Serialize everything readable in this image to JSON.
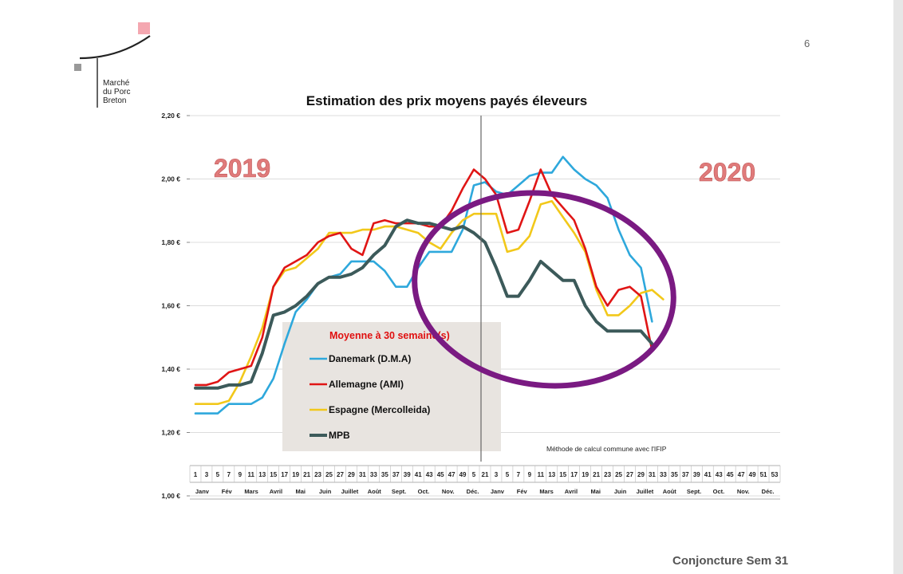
{
  "page": {
    "number": "6",
    "footer": "Conjoncture Sem 31",
    "logo_lines": [
      "Marché",
      "du Porc",
      "Breton"
    ]
  },
  "colors": {
    "danemark": "#2ea8dc",
    "allemagne": "#e01515",
    "espagne": "#f2c81a",
    "mpb": "#3c5a5a",
    "highlight_circle": "#7a1a82",
    "legend_box": "#e8e4e0",
    "year_label": "#e07b7b",
    "logo_pink": "#f4a7b0",
    "logo_grey": "#999999"
  },
  "chart_data": {
    "type": "line",
    "title": "Estimation des prix moyens payés éleveurs",
    "y_ticks": [
      "2,20 €",
      "2,00 €",
      "1,80 €",
      "1,60 €",
      "1,40 €",
      "1,20 €",
      "1,00 €"
    ],
    "ylim": [
      1.0,
      2.2
    ],
    "x_tick_labels": [
      "1",
      "3",
      "5",
      "7",
      "9",
      "11",
      "13",
      "15",
      "17",
      "19",
      "21",
      "23",
      "25",
      "27",
      "29",
      "31",
      "33",
      "35",
      "37",
      "39",
      "41",
      "43",
      "45",
      "47",
      "49",
      "5",
      "21",
      "3",
      "5",
      "7",
      "9",
      "11",
      "13",
      "15",
      "17",
      "19",
      "21",
      "23",
      "25",
      "27",
      "29",
      "31",
      "33",
      "35",
      "37",
      "39",
      "41",
      "43",
      "45",
      "47",
      "49",
      "51",
      "53"
    ],
    "months": [
      "Janv",
      "Fév",
      "Mars",
      "Avril",
      "Mai",
      "Juin",
      "Juillet",
      "Août",
      "Sept.",
      "Oct.",
      "Nov.",
      "Déc.",
      "Janv",
      "Fév",
      "Mars",
      "Avril",
      "Mai",
      "Juin",
      "Juillet",
      "Août",
      "Sept.",
      "Oct.",
      "Nov.",
      "Déc."
    ],
    "year_labels": [
      "2019",
      "2020"
    ],
    "legend_title": "Moyenne à  30 semaine(s)",
    "note": "Méthode de calcul commune avec l'IFIP",
    "series": [
      {
        "name": "Danemark (D.M.A)",
        "key": "danemark",
        "x": [
          1,
          5,
          7,
          11,
          13,
          15,
          17,
          19,
          21,
          23,
          25,
          27,
          29,
          31,
          33,
          35,
          37,
          39,
          41,
          43,
          45,
          47,
          49,
          51,
          53,
          55,
          57,
          59,
          61,
          63,
          65,
          67,
          69,
          71,
          73,
          75,
          77,
          79,
          81,
          83
        ],
        "y": [
          1.26,
          1.26,
          1.29,
          1.29,
          1.31,
          1.37,
          1.48,
          1.58,
          1.62,
          1.67,
          1.69,
          1.7,
          1.74,
          1.74,
          1.74,
          1.71,
          1.66,
          1.66,
          1.72,
          1.77,
          1.77,
          1.77,
          1.84,
          1.98,
          1.99,
          1.96,
          1.95,
          1.98,
          2.01,
          2.02,
          2.02,
          2.07,
          2.03,
          2.0,
          1.98,
          1.94,
          1.84,
          1.76,
          1.72,
          1.55
        ]
      },
      {
        "name": "Allemagne (AMI)",
        "key": "allemagne",
        "x": [
          1,
          3,
          5,
          7,
          9,
          11,
          13,
          15,
          17,
          19,
          21,
          23,
          25,
          27,
          29,
          31,
          33,
          35,
          37,
          39,
          41,
          43,
          45,
          47,
          49,
          51,
          53,
          55,
          57,
          59,
          61,
          63,
          65,
          67,
          69,
          71,
          73,
          75,
          77,
          79,
          81,
          83
        ],
        "y": [
          1.35,
          1.35,
          1.36,
          1.39,
          1.4,
          1.41,
          1.5,
          1.66,
          1.72,
          1.74,
          1.76,
          1.8,
          1.82,
          1.83,
          1.78,
          1.76,
          1.86,
          1.87,
          1.86,
          1.86,
          1.86,
          1.85,
          1.85,
          1.9,
          1.97,
          2.03,
          2.0,
          1.95,
          1.83,
          1.84,
          1.93,
          2.03,
          1.95,
          1.91,
          1.87,
          1.78,
          1.66,
          1.6,
          1.65,
          1.66,
          1.63,
          1.46
        ]
      },
      {
        "name": "Espagne (Mercolleida)",
        "key": "espagne",
        "x": [
          1,
          5,
          7,
          9,
          11,
          13,
          15,
          17,
          19,
          21,
          23,
          25,
          27,
          29,
          31,
          33,
          35,
          37,
          39,
          41,
          43,
          45,
          47,
          49,
          51,
          53,
          55,
          57,
          59,
          61,
          63,
          65,
          67,
          69,
          71,
          73,
          75,
          77,
          79,
          81,
          83,
          85
        ],
        "y": [
          1.29,
          1.29,
          1.3,
          1.36,
          1.44,
          1.53,
          1.66,
          1.71,
          1.72,
          1.75,
          1.78,
          1.83,
          1.83,
          1.83,
          1.84,
          1.84,
          1.85,
          1.85,
          1.84,
          1.83,
          1.8,
          1.78,
          1.83,
          1.87,
          1.89,
          1.89,
          1.89,
          1.77,
          1.78,
          1.82,
          1.92,
          1.93,
          1.88,
          1.83,
          1.77,
          1.65,
          1.57,
          1.57,
          1.6,
          1.64,
          1.65,
          1.62
        ]
      },
      {
        "name": "MPB",
        "key": "mpb",
        "x": [
          1,
          3,
          5,
          7,
          9,
          11,
          13,
          15,
          17,
          19,
          21,
          23,
          25,
          27,
          29,
          31,
          33,
          35,
          37,
          39,
          41,
          43,
          45,
          47,
          49,
          51,
          53,
          55,
          57,
          59,
          61,
          63,
          65,
          67,
          69,
          71,
          73,
          75,
          77,
          79,
          81,
          83
        ],
        "y": [
          1.34,
          1.34,
          1.34,
          1.35,
          1.35,
          1.36,
          1.45,
          1.57,
          1.58,
          1.6,
          1.63,
          1.67,
          1.69,
          1.69,
          1.7,
          1.72,
          1.76,
          1.79,
          1.85,
          1.87,
          1.86,
          1.86,
          1.85,
          1.84,
          1.85,
          1.83,
          1.8,
          1.72,
          1.63,
          1.63,
          1.68,
          1.74,
          1.71,
          1.68,
          1.68,
          1.6,
          1.55,
          1.52,
          1.52,
          1.52,
          1.52,
          1.48
        ]
      }
    ]
  }
}
